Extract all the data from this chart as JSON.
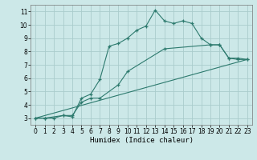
{
  "xlabel": "Humidex (Indice chaleur)",
  "background_color": "#cce8e8",
  "grid_color": "#aacccc",
  "line_color": "#2d7a6e",
  "xlim": [
    -0.5,
    23.5
  ],
  "ylim": [
    2.5,
    11.5
  ],
  "xtick_labels": [
    "0",
    "1",
    "2",
    "3",
    "4",
    "5",
    "6",
    "7",
    "8",
    "9",
    "10",
    "11",
    "12",
    "13",
    "14",
    "15",
    "16",
    "17",
    "18",
    "19",
    "20",
    "21",
    "22",
    "23"
  ],
  "xticks": [
    0,
    1,
    2,
    3,
    4,
    5,
    6,
    7,
    8,
    9,
    10,
    11,
    12,
    13,
    14,
    15,
    16,
    17,
    18,
    19,
    20,
    21,
    22,
    23
  ],
  "yticks": [
    3,
    4,
    5,
    6,
    7,
    8,
    9,
    10,
    11
  ],
  "line1_x": [
    0,
    1,
    2,
    3,
    4,
    5,
    6,
    7,
    8,
    9,
    10,
    11,
    12,
    13,
    14,
    15,
    16,
    17,
    18,
    19,
    20,
    21,
    22,
    23
  ],
  "line1_y": [
    3.0,
    3.0,
    3.0,
    3.2,
    3.1,
    4.5,
    4.8,
    5.9,
    8.4,
    8.6,
    9.0,
    9.6,
    9.9,
    11.1,
    10.3,
    10.1,
    10.3,
    10.1,
    9.0,
    8.5,
    8.5,
    7.5,
    7.4,
    7.4
  ],
  "line2_x": [
    0,
    1,
    3,
    4,
    5,
    6,
    7,
    9,
    10,
    14,
    19,
    20,
    21,
    22,
    23
  ],
  "line2_y": [
    3.0,
    3.0,
    3.2,
    3.2,
    4.2,
    4.5,
    4.5,
    5.5,
    6.5,
    8.2,
    8.5,
    8.5,
    7.5,
    7.5,
    7.4
  ],
  "line3_x": [
    0,
    23
  ],
  "line3_y": [
    3.0,
    7.4
  ]
}
